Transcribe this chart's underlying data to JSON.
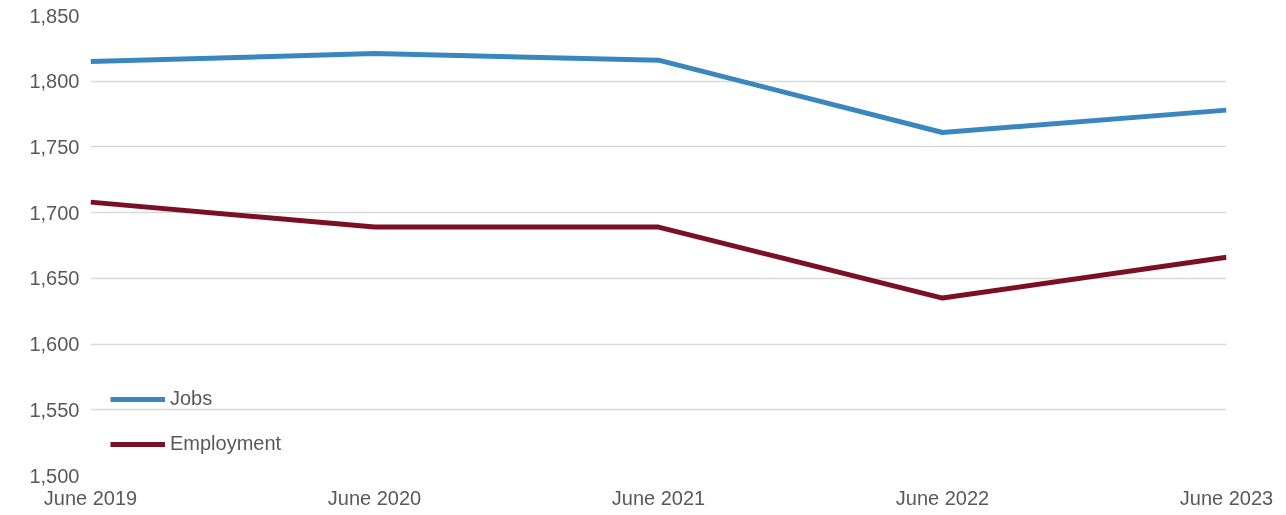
{
  "chart_data": {
    "type": "line",
    "categories": [
      "June 2019",
      "June 2020",
      "June 2021",
      "June 2022",
      "June 2023"
    ],
    "ylim": [
      1500,
      1850
    ],
    "yticks": [
      {
        "value": 1500,
        "label": "1,500"
      },
      {
        "value": 1550,
        "label": "1,550"
      },
      {
        "value": 1600,
        "label": "1,600"
      },
      {
        "value": 1650,
        "label": "1,650"
      },
      {
        "value": 1700,
        "label": "1,700"
      },
      {
        "value": 1750,
        "label": "1,750"
      },
      {
        "value": 1800,
        "label": "1,800"
      },
      {
        "value": 1850,
        "label": "1,850"
      }
    ],
    "grid": "y",
    "legend": "bottom left",
    "marker": "none",
    "line_style": "solid",
    "series": [
      {
        "name": "Jobs",
        "color": "#3a87c0",
        "values": [
          1815,
          1821,
          1816,
          1761,
          1778
        ]
      },
      {
        "name": "Employment",
        "color": "#7b1022",
        "values": [
          1708,
          1689,
          1689,
          1635,
          1666
        ]
      }
    ]
  }
}
